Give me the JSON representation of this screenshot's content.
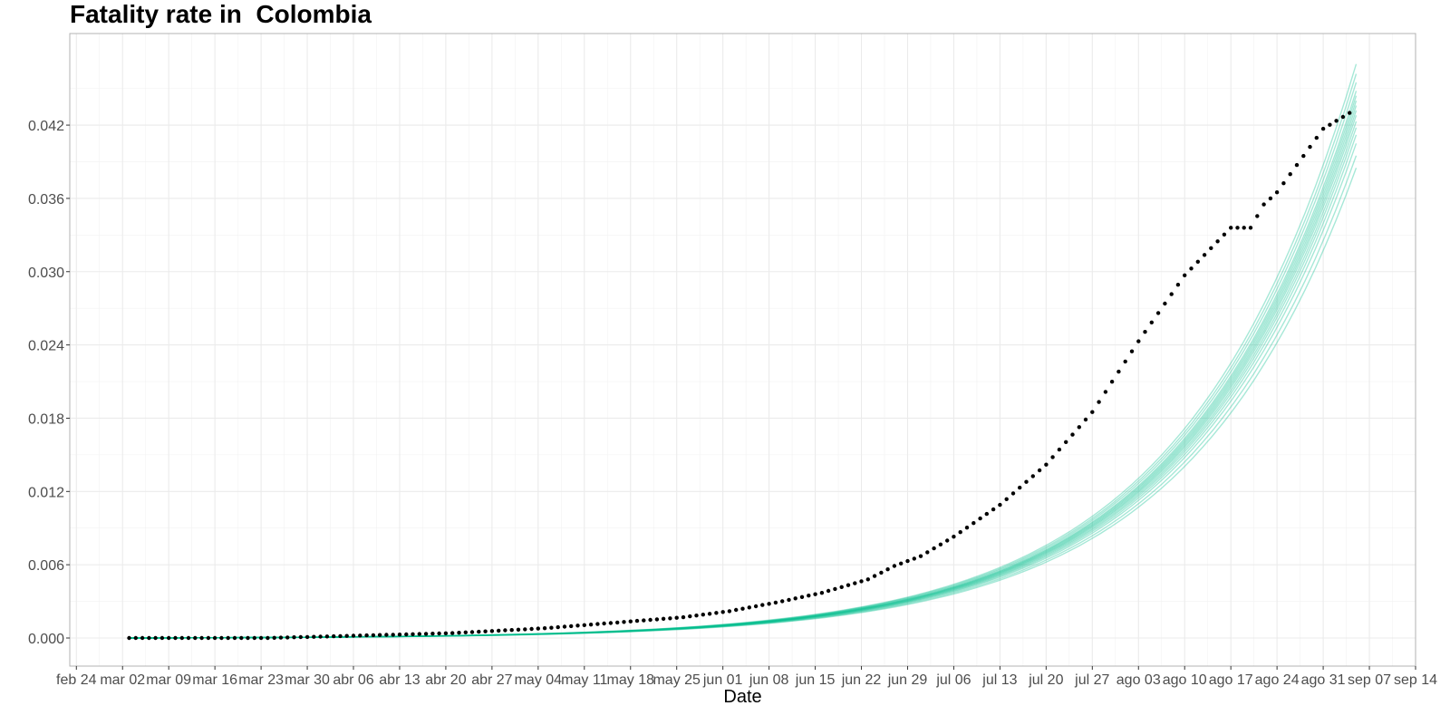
{
  "chart_data": {
    "type": "scatter",
    "title": "Fatality rate in  Colombia",
    "xlabel": "Date",
    "ylabel": "",
    "x_tick_labels": [
      "feb 24",
      "mar 02",
      "mar 09",
      "mar 16",
      "mar 23",
      "mar 30",
      "abr 06",
      "abr 13",
      "abr 20",
      "abr 27",
      "may 04",
      "may 11",
      "may 18",
      "may 25",
      "jun 01",
      "jun 08",
      "jun 15",
      "jun 22",
      "jun 29",
      "jul 06",
      "jul 13",
      "jul 20",
      "jul 27",
      "ago 03",
      "ago 10",
      "ago 17",
      "ago 24",
      "ago 31",
      "sep 07",
      "sep 14"
    ],
    "y_tick_labels": [
      "0.000",
      "0.006",
      "0.012",
      "0.018",
      "0.024",
      "0.030",
      "0.036",
      "0.042"
    ],
    "xlim": [
      "2020-02-23",
      "2020-09-14"
    ],
    "ylim": [
      -0.0023,
      0.0495
    ],
    "grid": true,
    "legend": "none",
    "series": [
      {
        "kind": "points",
        "color": "#000000",
        "x": [
          "2020-03-03",
          "2020-03-10",
          "2020-03-17",
          "2020-03-24",
          "2020-03-31",
          "2020-04-07",
          "2020-04-14",
          "2020-04-21",
          "2020-04-28",
          "2020-05-05",
          "2020-05-12",
          "2020-05-19",
          "2020-05-26",
          "2020-06-02",
          "2020-06-09",
          "2020-06-16",
          "2020-06-23",
          "2020-06-27",
          "2020-07-01",
          "2020-07-06",
          "2020-07-13",
          "2020-07-20",
          "2020-07-27",
          "2020-08-03",
          "2020-08-10",
          "2020-08-17",
          "2020-08-20",
          "2020-08-22",
          "2020-08-24",
          "2020-08-31",
          "2020-09-04"
        ],
        "y": [
          0.0,
          0.0,
          0.0,
          0.0,
          0.0001,
          0.0002,
          0.0003,
          0.0004,
          0.0006,
          0.0008,
          0.0011,
          0.0014,
          0.0017,
          0.0022,
          0.0029,
          0.0037,
          0.0048,
          0.0059,
          0.0067,
          0.0083,
          0.0109,
          0.0142,
          0.0185,
          0.0243,
          0.0297,
          0.0336,
          0.0336,
          0.0355,
          0.0365,
          0.0417,
          0.043
        ]
      },
      {
        "kind": "ensemble",
        "color": "#00BE8C",
        "x_start": "2020-03-03",
        "x_end": "2020-09-05",
        "end_values": [
          0.0385,
          0.0395,
          0.0405,
          0.0412,
          0.0418,
          0.0423,
          0.0428,
          0.0432,
          0.0436,
          0.044,
          0.0444,
          0.0448,
          0.0455,
          0.0462,
          0.047
        ]
      }
    ]
  }
}
